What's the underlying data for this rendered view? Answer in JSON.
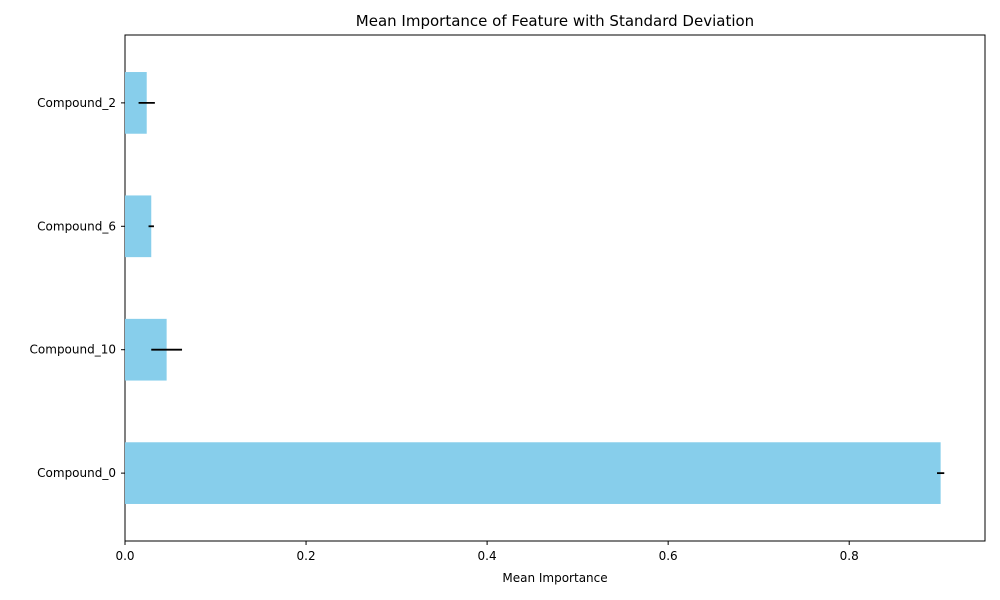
{
  "chart_data": {
    "type": "bar",
    "orientation": "horizontal",
    "title": "Mean Importance of Feature with Standard Deviation",
    "xlabel": "Mean Importance",
    "ylabel": "",
    "categories": [
      "Compound_0",
      "Compound_10",
      "Compound_6",
      "Compound_2"
    ],
    "values": [
      0.901,
      0.046,
      0.029,
      0.024
    ],
    "errors": [
      0.004,
      0.017,
      0.003,
      0.009
    ],
    "xlim": [
      0,
      0.95
    ],
    "xticks": [
      0.0,
      0.2,
      0.4,
      0.6,
      0.8
    ],
    "xtick_labels": [
      "0.0",
      "0.2",
      "0.4",
      "0.6",
      "0.8"
    ],
    "bar_color": "#87ceeb",
    "error_color": "#000000",
    "grid": false
  }
}
